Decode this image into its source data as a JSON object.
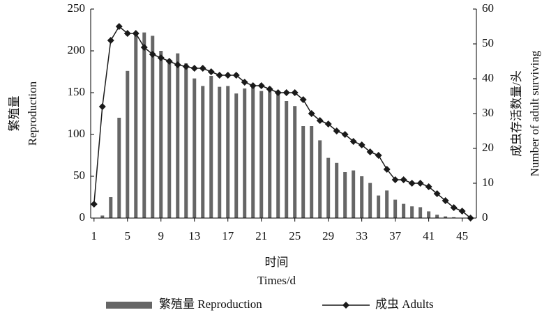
{
  "chart_data": {
    "type": "bar",
    "x_label": [
      "时间",
      "Times/d"
    ],
    "y_label": [
      "繁殖量",
      "Reproduction"
    ],
    "y2_label": [
      "成虫存活数量/头",
      "Number of adult surviving"
    ],
    "x": [
      1,
      2,
      3,
      4,
      5,
      6,
      7,
      8,
      9,
      10,
      11,
      12,
      13,
      14,
      15,
      16,
      17,
      18,
      19,
      20,
      21,
      22,
      23,
      24,
      25,
      26,
      27,
      28,
      29,
      30,
      31,
      32,
      33,
      34,
      35,
      36,
      37,
      38,
      39,
      40,
      41,
      42,
      43,
      44,
      45,
      46
    ],
    "xlim": [
      0.6,
      46.7
    ],
    "xticks": [
      1,
      5,
      9,
      13,
      17,
      21,
      25,
      29,
      33,
      37,
      41,
      45
    ],
    "ylim": [
      0,
      250
    ],
    "yticks": [
      0,
      50,
      100,
      150,
      200,
      250
    ],
    "y2lim": [
      0,
      60
    ],
    "y2ticks": [
      0,
      10,
      20,
      30,
      40,
      50,
      60
    ],
    "series": [
      {
        "name": "繁殖量 Reproduction",
        "type": "bar",
        "color": "#666666",
        "values": [
          0,
          3,
          25,
          120,
          176,
          220,
          222,
          218,
          200,
          185,
          197,
          185,
          167,
          158,
          170,
          157,
          158,
          149,
          155,
          158,
          152,
          157,
          150,
          140,
          134,
          110,
          110,
          93,
          72,
          66,
          55,
          57,
          50,
          42,
          27,
          33,
          22,
          17,
          14,
          13,
          8,
          4,
          2,
          1,
          0,
          0
        ]
      },
      {
        "name": "成虫 Adults",
        "type": "line",
        "axis": "y2",
        "color": "#1a1a1a",
        "values": [
          4,
          32,
          51,
          55,
          53,
          53,
          49,
          47,
          46,
          45,
          44,
          43.5,
          43,
          43,
          42,
          41,
          41,
          41,
          39,
          38,
          38,
          37,
          36,
          36,
          36,
          34,
          30,
          28,
          27,
          25,
          24,
          22,
          21,
          19,
          18,
          14,
          11,
          11,
          10,
          10,
          9,
          7,
          5,
          3,
          2,
          0
        ]
      }
    ]
  }
}
